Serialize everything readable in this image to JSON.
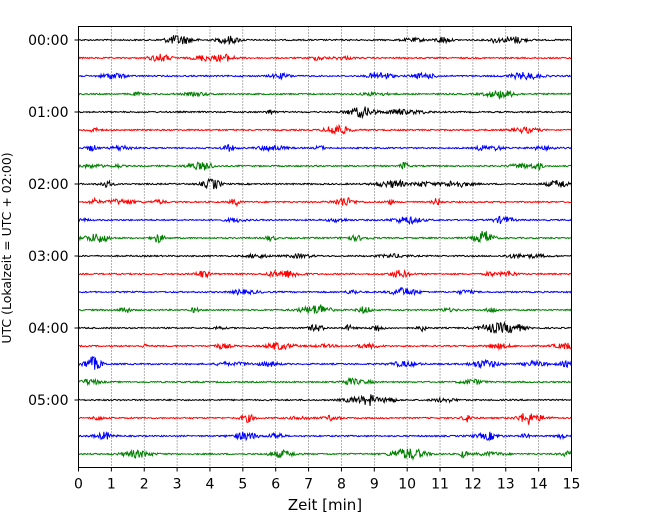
{
  "chart_data": {
    "type": "line",
    "title": "",
    "xlabel": "Zeit  [min]",
    "ylabel": "UTC (Lokalzeit = UTC + 02:00)",
    "xlim": [
      0,
      15
    ],
    "x_ticks": [
      0,
      1,
      2,
      3,
      4,
      5,
      6,
      7,
      8,
      9,
      10,
      11,
      12,
      13,
      14,
      15
    ],
    "y_tick_labels": [
      {
        "label": "00:00",
        "row": 0
      },
      {
        "label": "01:00",
        "row": 4
      },
      {
        "label": "02:00",
        "row": 8
      },
      {
        "label": "03:00",
        "row": 12
      },
      {
        "label": "04:00",
        "row": 16
      },
      {
        "label": "05:00",
        "row": 20
      }
    ],
    "grid": "vertical dotted at each minute",
    "trace_minutes": 15,
    "trace_colors": [
      "#000000",
      "#ff0000",
      "#0000ff",
      "#008000"
    ],
    "series": [
      {
        "start": "00:00",
        "color": "#000000"
      },
      {
        "start": "00:15",
        "color": "#ff0000"
      },
      {
        "start": "00:30",
        "color": "#0000ff"
      },
      {
        "start": "00:45",
        "color": "#008000"
      },
      {
        "start": "01:00",
        "color": "#000000"
      },
      {
        "start": "01:15",
        "color": "#ff0000"
      },
      {
        "start": "01:30",
        "color": "#0000ff"
      },
      {
        "start": "01:45",
        "color": "#008000"
      },
      {
        "start": "02:00",
        "color": "#000000"
      },
      {
        "start": "02:15",
        "color": "#ff0000"
      },
      {
        "start": "02:30",
        "color": "#0000ff"
      },
      {
        "start": "02:45",
        "color": "#008000"
      },
      {
        "start": "03:00",
        "color": "#000000"
      },
      {
        "start": "03:15",
        "color": "#ff0000"
      },
      {
        "start": "03:30",
        "color": "#0000ff"
      },
      {
        "start": "03:45",
        "color": "#008000"
      },
      {
        "start": "04:00",
        "color": "#000000"
      },
      {
        "start": "04:15",
        "color": "#ff0000"
      },
      {
        "start": "04:30",
        "color": "#0000ff"
      },
      {
        "start": "04:45",
        "color": "#008000"
      },
      {
        "start": "05:00",
        "color": "#000000"
      },
      {
        "start": "05:15",
        "color": "#ff0000"
      },
      {
        "start": "05:30",
        "color": "#0000ff"
      },
      {
        "start": "05:45",
        "color": "#008000"
      }
    ]
  }
}
